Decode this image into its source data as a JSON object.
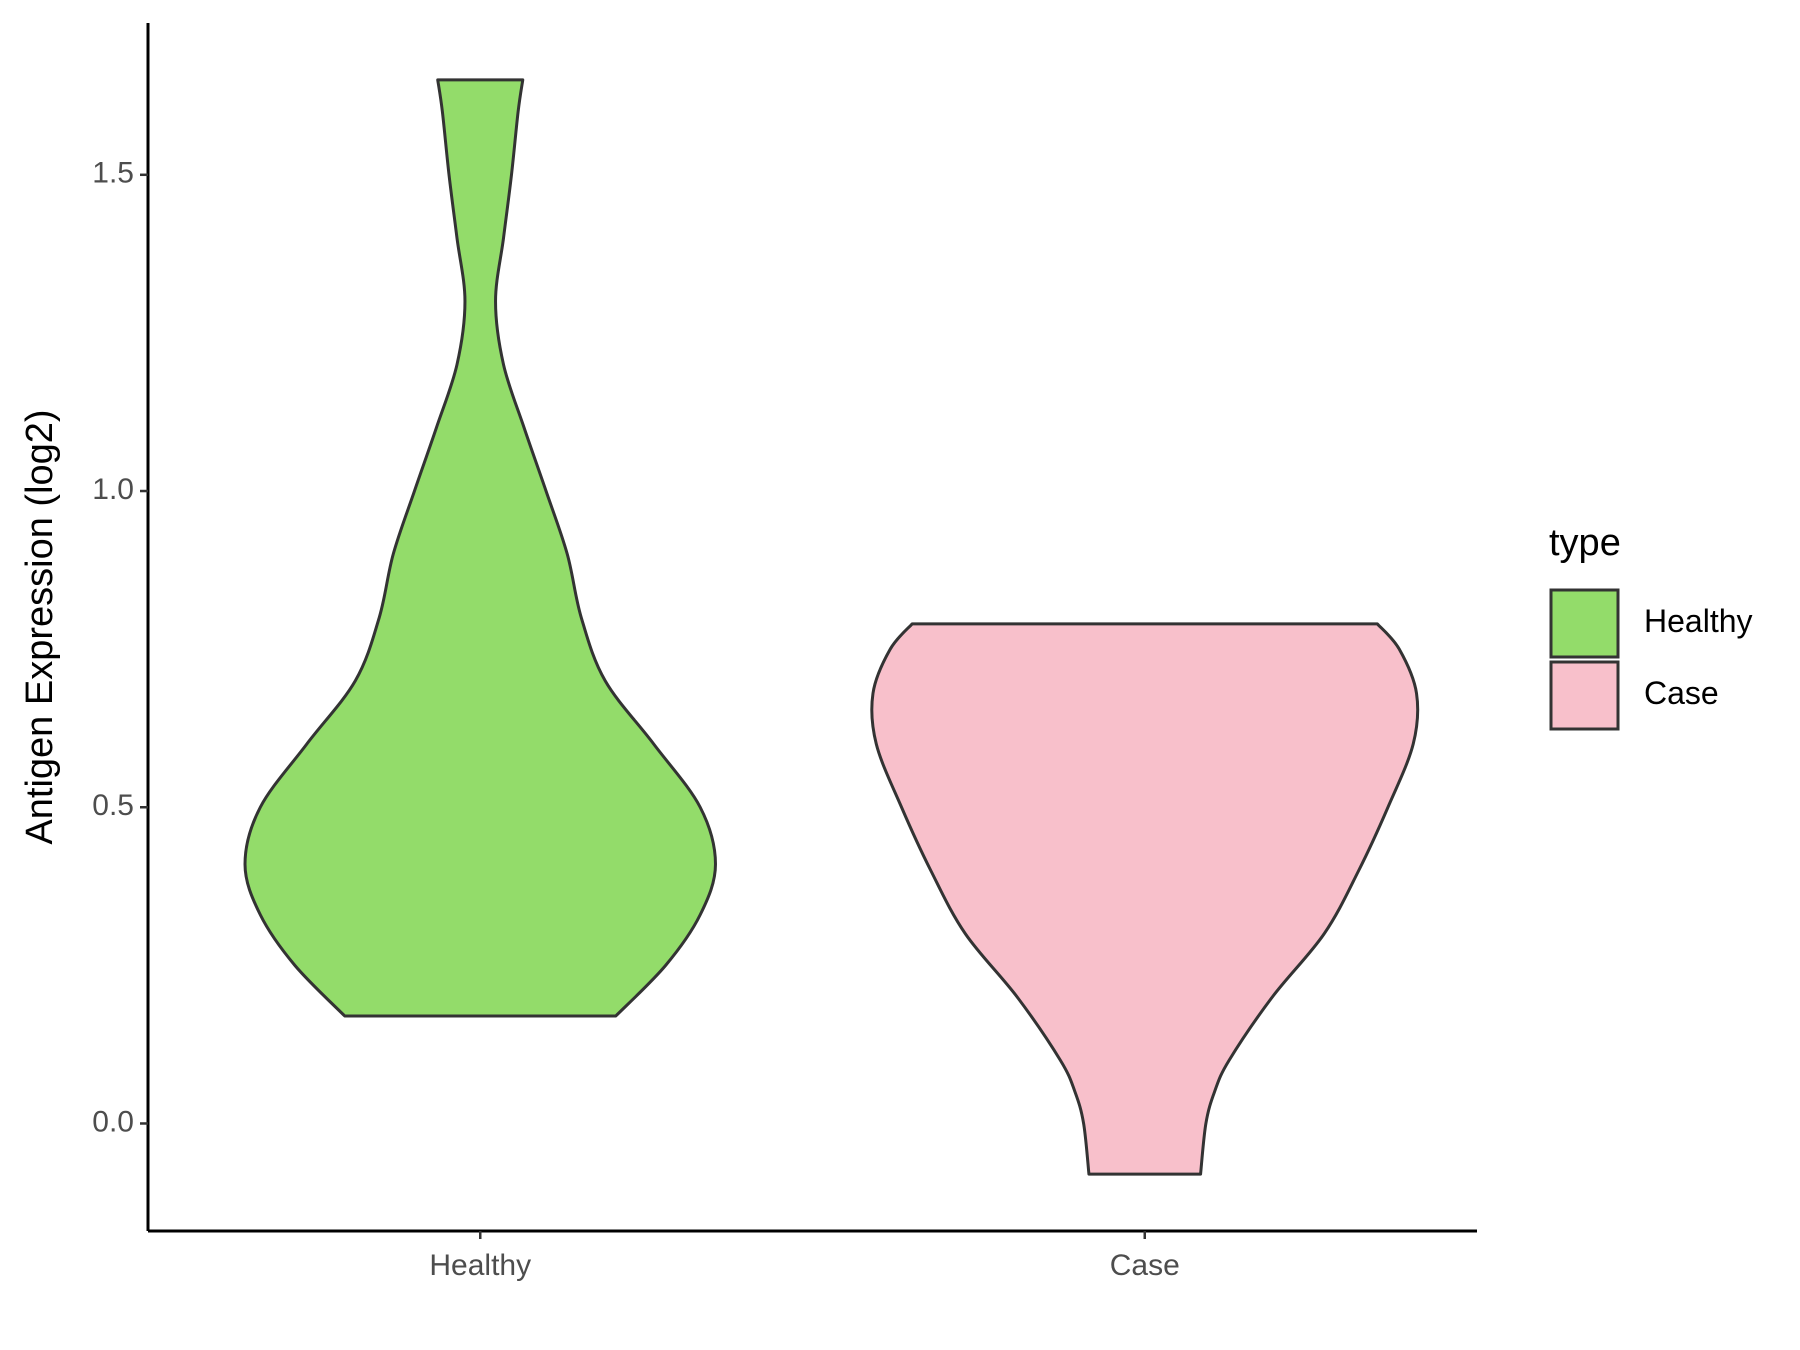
{
  "chart_data": {
    "type": "violin",
    "ylabel": "Antigen Expression (log2)",
    "categories": [
      "Healthy",
      "Case"
    ],
    "legend_title": "type",
    "legend": "right",
    "ylim": [
      -0.17,
      1.74
    ],
    "yticks": [
      {
        "value": 0,
        "label": "0.0"
      },
      {
        "value": 0.5,
        "label": "0.5"
      },
      {
        "value": 1,
        "label": "1.0"
      },
      {
        "value": 1.5,
        "label": "1.5"
      }
    ],
    "series": [
      {
        "name": "Healthy",
        "color": "#93dc6a",
        "y": [
          0.17,
          0.25,
          0.33,
          0.41,
          0.5,
          0.6,
          0.7,
          0.8,
          0.9,
          1.0,
          1.1,
          1.2,
          1.3,
          1.4,
          1.5,
          1.6,
          1.65
        ],
        "width": [
          0.204,
          0.279,
          0.331,
          0.354,
          0.331,
          0.261,
          0.188,
          0.152,
          0.131,
          0.099,
          0.066,
          0.035,
          0.023,
          0.035,
          0.047,
          0.057,
          0.064
        ]
      },
      {
        "name": "Case",
        "color": "#f8c0cb",
        "y": [
          -0.08,
          0.0,
          0.05,
          0.1,
          0.2,
          0.3,
          0.4,
          0.5,
          0.6,
          0.68,
          0.75,
          0.79
        ],
        "width": [
          0.084,
          0.092,
          0.105,
          0.127,
          0.192,
          0.27,
          0.322,
          0.366,
          0.404,
          0.409,
          0.383,
          0.35
        ]
      }
    ]
  }
}
